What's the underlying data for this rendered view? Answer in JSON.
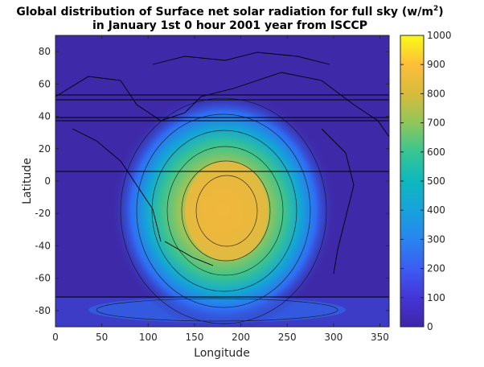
{
  "chart_data": {
    "type": "heatmap",
    "title_line1": "Global distribution of Surface net solar radiation for full sky (w/m",
    "title_sup": "2",
    "title_close": ")",
    "title_line2": "in January 1st 0 hour 2001 year from ISCCP",
    "xlabel": "Longitude",
    "ylabel": "Latitude",
    "xlim": [
      0,
      360
    ],
    "ylim": [
      -90,
      90
    ],
    "xticks": [
      "0",
      "50",
      "100",
      "150",
      "200",
      "250",
      "300",
      "350"
    ],
    "yticks": [
      "80",
      "60",
      "40",
      "20",
      "0",
      "-20",
      "-40",
      "-60",
      "-80"
    ],
    "colorbar": {
      "clim": [
        0,
        1000
      ],
      "ticks": [
        "1000",
        "900",
        "800",
        "700",
        "600",
        "500",
        "400",
        "300",
        "200",
        "100",
        "0"
      ],
      "colormap": [
        "#3e26a8",
        "#4743f8",
        "#2f6ef5",
        "#1a92e0",
        "#0eaec4",
        "#30c29b",
        "#8bc84f",
        "#e0b93a",
        "#fcc937",
        "#f9fb15"
      ]
    },
    "field": {
      "background_value": 50,
      "peak_center_lon": 185,
      "peak_center_lat": -20,
      "peak_value": 820
    },
    "grid": false
  }
}
